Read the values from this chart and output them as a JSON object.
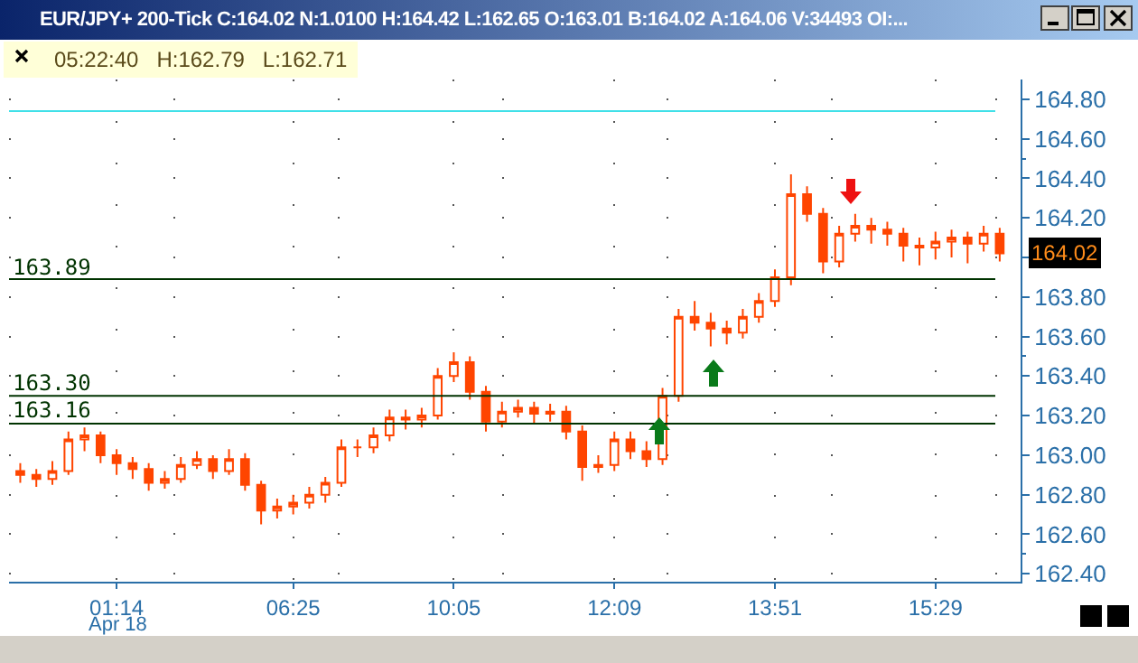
{
  "chart_data": {
    "type": "candlestick",
    "title": "EUR/JPY+ 200-Tick C:164.02 N:1.0100 H:164.42 L:162.65 O:163.01 B:164.02 A:164.06 V:34493 OI:...",
    "annotations": [
      "05:22:40   H:162.79   L:162.71",
      "164.02",
      "Apr 18"
    ],
    "color": "#ff4500",
    "categories": [
      null,
      null,
      null,
      null,
      null,
      null,
      "01:14",
      null,
      null,
      null,
      null,
      null,
      null,
      null,
      null,
      null,
      null,
      "06:25",
      null,
      null,
      null,
      null,
      null,
      null,
      null,
      null,
      null,
      "10:05",
      null,
      null,
      null,
      null,
      null,
      null,
      null,
      null,
      null,
      "12:09",
      null,
      null,
      null,
      null,
      null,
      null,
      null,
      null,
      null,
      "13:51",
      null,
      null,
      null,
      null,
      null,
      null,
      null,
      null,
      null,
      "15:29",
      null,
      null,
      null,
      null
    ],
    "ohlc": [
      [
        162.92,
        162.96,
        162.86,
        162.9
      ],
      [
        162.9,
        162.93,
        162.84,
        162.88
      ],
      [
        162.88,
        162.97,
        162.85,
        162.92
      ],
      [
        162.92,
        163.12,
        162.9,
        163.08
      ],
      [
        163.08,
        163.14,
        163.02,
        163.1
      ],
      [
        163.1,
        163.12,
        162.96,
        163.0
      ],
      [
        163.0,
        163.03,
        162.9,
        162.96
      ],
      [
        162.96,
        162.99,
        162.88,
        162.93
      ],
      [
        162.93,
        162.96,
        162.82,
        162.86
      ],
      [
        162.86,
        162.92,
        162.83,
        162.88
      ],
      [
        162.88,
        162.99,
        162.86,
        162.95
      ],
      [
        162.95,
        163.02,
        162.93,
        162.98
      ],
      [
        162.98,
        163.0,
        162.88,
        162.92
      ],
      [
        162.92,
        163.03,
        162.9,
        162.98
      ],
      [
        162.98,
        163.01,
        162.82,
        162.85
      ],
      [
        162.85,
        162.87,
        162.65,
        162.72
      ],
      [
        162.72,
        162.78,
        162.68,
        162.74
      ],
      [
        162.74,
        162.8,
        162.7,
        162.76
      ],
      [
        162.76,
        162.84,
        162.73,
        162.8
      ],
      [
        162.8,
        162.89,
        162.76,
        162.86
      ],
      [
        162.86,
        163.08,
        162.84,
        163.04
      ],
      [
        163.04,
        163.08,
        162.99,
        163.04
      ],
      [
        163.04,
        163.14,
        163.01,
        163.1
      ],
      [
        163.1,
        163.23,
        163.07,
        163.19
      ],
      [
        163.19,
        163.23,
        163.13,
        163.18
      ],
      [
        163.18,
        163.24,
        163.14,
        163.2
      ],
      [
        163.2,
        163.44,
        163.18,
        163.4
      ],
      [
        163.4,
        163.52,
        163.37,
        163.47
      ],
      [
        163.47,
        163.5,
        163.28,
        163.32
      ],
      [
        163.32,
        163.35,
        163.12,
        163.17
      ],
      [
        163.17,
        163.27,
        163.14,
        163.22
      ],
      [
        163.22,
        163.28,
        163.19,
        163.24
      ],
      [
        163.24,
        163.27,
        163.16,
        163.21
      ],
      [
        163.21,
        163.26,
        163.17,
        163.22
      ],
      [
        163.22,
        163.25,
        163.08,
        163.12
      ],
      [
        163.12,
        163.15,
        162.87,
        162.94
      ],
      [
        162.94,
        163.0,
        162.91,
        162.95
      ],
      [
        162.95,
        163.12,
        162.92,
        163.08
      ],
      [
        163.08,
        163.12,
        162.98,
        163.02
      ],
      [
        163.02,
        163.07,
        162.94,
        162.98
      ],
      [
        162.98,
        163.34,
        162.95,
        163.3
      ],
      [
        163.3,
        163.74,
        163.27,
        163.7
      ],
      [
        163.7,
        163.78,
        163.63,
        163.67
      ],
      [
        163.67,
        163.72,
        163.55,
        163.64
      ],
      [
        163.64,
        163.68,
        163.56,
        163.62
      ],
      [
        163.62,
        163.74,
        163.59,
        163.7
      ],
      [
        163.7,
        163.82,
        163.67,
        163.78
      ],
      [
        163.78,
        163.94,
        163.75,
        163.9
      ],
      [
        163.9,
        164.42,
        163.86,
        164.32
      ],
      [
        164.32,
        164.36,
        164.18,
        164.22
      ],
      [
        164.22,
        164.25,
        163.92,
        163.98
      ],
      [
        163.98,
        164.16,
        163.95,
        164.12
      ],
      [
        164.12,
        164.22,
        164.08,
        164.16
      ],
      [
        164.16,
        164.2,
        164.07,
        164.14
      ],
      [
        164.14,
        164.18,
        164.06,
        164.12
      ],
      [
        164.12,
        164.15,
        163.98,
        164.06
      ],
      [
        164.06,
        164.1,
        163.96,
        164.05
      ],
      [
        164.05,
        164.13,
        163.99,
        164.08
      ],
      [
        164.08,
        164.14,
        164.0,
        164.1
      ],
      [
        164.1,
        164.13,
        163.97,
        164.07
      ],
      [
        164.07,
        164.16,
        164.03,
        164.12
      ],
      [
        164.12,
        164.15,
        163.98,
        164.02
      ]
    ],
    "ylim": [
      162.36,
      164.9
    ],
    "yticks": [
      {
        "value": 162.4,
        "label": "162.40"
      },
      {
        "value": 162.6,
        "label": "162.60"
      },
      {
        "value": 162.8,
        "label": "162.80"
      },
      {
        "value": 163,
        "label": "163.00"
      },
      {
        "value": 163.2,
        "label": "163.20"
      },
      {
        "value": 163.4,
        "label": "163.40"
      },
      {
        "value": 163.6,
        "label": "163.60"
      },
      {
        "value": 163.8,
        "label": "163.80"
      },
      {
        "value": 164,
        "label": null
      },
      {
        "value": 164.2,
        "label": "164.20"
      },
      {
        "value": 164.4,
        "label": "164.40"
      },
      {
        "value": 164.6,
        "label": "164.60"
      },
      {
        "value": 164.8,
        "label": "164.80"
      }
    ],
    "grid": true,
    "ref_lines": [
      {
        "axis": "y",
        "value": 163.89,
        "label": "163.89",
        "color": "#003300"
      },
      {
        "axis": "y",
        "value": 163.3,
        "label": "163.30",
        "color": "#003300"
      },
      {
        "axis": "y",
        "value": 163.16,
        "label": "163.16",
        "color": "#003300"
      },
      {
        "axis": "y",
        "value": 164.74,
        "color": "#40e0e8"
      }
    ]
  }
}
